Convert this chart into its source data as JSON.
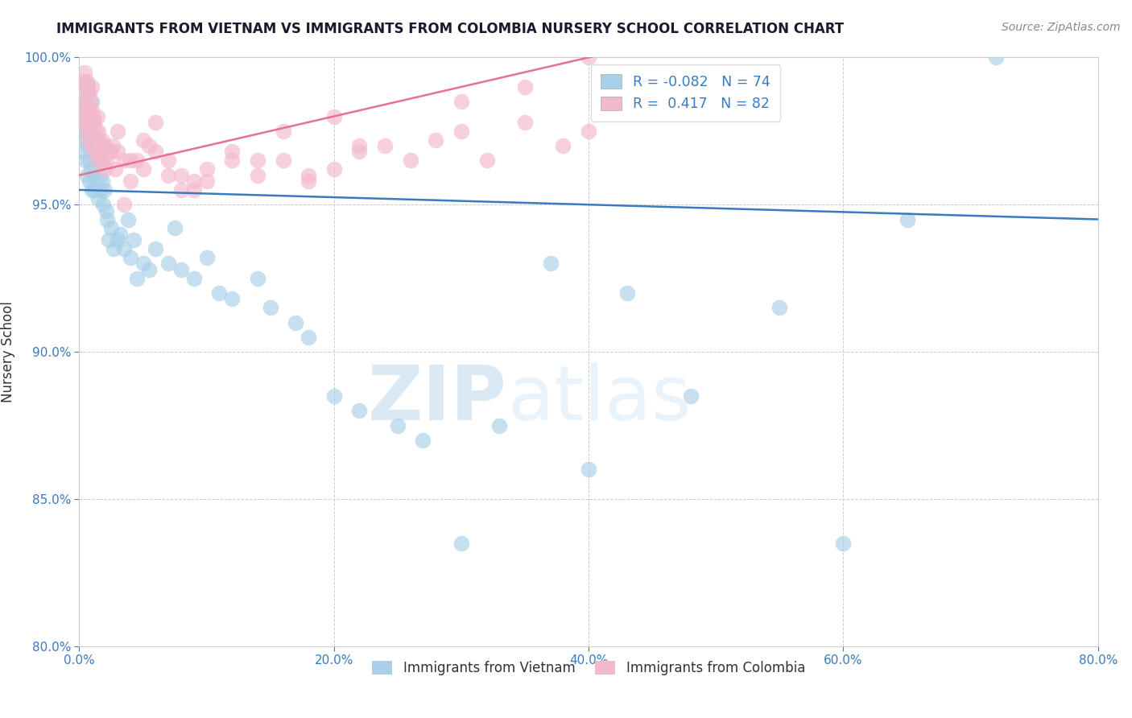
{
  "title": "IMMIGRANTS FROM VIETNAM VS IMMIGRANTS FROM COLOMBIA NURSERY SCHOOL CORRELATION CHART",
  "source": "Source: ZipAtlas.com",
  "ylabel": "Nursery School",
  "xlim": [
    0.0,
    80.0
  ],
  "ylim": [
    80.0,
    100.0
  ],
  "xticks": [
    0.0,
    20.0,
    40.0,
    60.0,
    80.0
  ],
  "yticks": [
    80.0,
    85.0,
    90.0,
    95.0,
    100.0
  ],
  "vietnam_R": -0.082,
  "vietnam_N": 74,
  "colombia_R": 0.417,
  "colombia_N": 82,
  "vietnam_color": "#a8d0e8",
  "colombia_color": "#f4b8cc",
  "vietnam_line_color": "#3a7bbf",
  "colombia_line_color": "#e87090",
  "watermark_zip": "ZIP",
  "watermark_atlas": "atlas",
  "legend_vietnam": "Immigrants from Vietnam",
  "legend_colombia": "Immigrants from Colombia",
  "vietnam_x": [
    0.2,
    0.3,
    0.3,
    0.4,
    0.4,
    0.5,
    0.5,
    0.5,
    0.6,
    0.6,
    0.6,
    0.7,
    0.7,
    0.8,
    0.8,
    0.8,
    0.9,
    0.9,
    1.0,
    1.0,
    1.0,
    1.1,
    1.1,
    1.2,
    1.2,
    1.3,
    1.4,
    1.5,
    1.5,
    1.6,
    1.7,
    1.8,
    1.9,
    2.0,
    2.1,
    2.2,
    2.3,
    2.5,
    2.7,
    3.0,
    3.2,
    3.5,
    3.8,
    4.0,
    4.3,
    4.5,
    5.0,
    5.5,
    6.0,
    7.0,
    7.5,
    8.0,
    9.0,
    10.0,
    11.0,
    12.0,
    14.0,
    15.0,
    17.0,
    18.0,
    20.0,
    22.0,
    25.0,
    27.0,
    30.0,
    33.0,
    37.0,
    40.0,
    43.0,
    48.0,
    55.0,
    60.0,
    65.0,
    72.0
  ],
  "vietnam_y": [
    97.5,
    98.2,
    96.8,
    99.0,
    97.2,
    98.5,
    97.8,
    96.5,
    99.1,
    97.5,
    96.0,
    98.8,
    97.0,
    98.0,
    96.5,
    95.8,
    97.5,
    96.2,
    98.5,
    97.2,
    95.5,
    97.8,
    96.0,
    97.2,
    95.5,
    96.8,
    97.0,
    96.5,
    95.2,
    96.0,
    95.5,
    95.8,
    95.0,
    95.5,
    94.8,
    94.5,
    93.8,
    94.2,
    93.5,
    93.8,
    94.0,
    93.5,
    94.5,
    93.2,
    93.8,
    92.5,
    93.0,
    92.8,
    93.5,
    93.0,
    94.2,
    92.8,
    92.5,
    93.2,
    92.0,
    91.8,
    92.5,
    91.5,
    91.0,
    90.5,
    88.5,
    88.0,
    87.5,
    87.0,
    83.5,
    87.5,
    93.0,
    86.0,
    92.0,
    88.5,
    91.5,
    83.5,
    94.5,
    100.0
  ],
  "colombia_x": [
    0.2,
    0.3,
    0.3,
    0.4,
    0.4,
    0.5,
    0.5,
    0.6,
    0.6,
    0.6,
    0.7,
    0.7,
    0.7,
    0.8,
    0.8,
    0.9,
    0.9,
    1.0,
    1.0,
    1.0,
    1.1,
    1.2,
    1.2,
    1.3,
    1.4,
    1.5,
    1.5,
    1.6,
    1.7,
    1.8,
    1.9,
    2.0,
    2.2,
    2.4,
    2.6,
    2.8,
    3.0,
    3.5,
    4.0,
    4.5,
    5.0,
    6.0,
    7.0,
    8.0,
    9.0,
    10.0,
    12.0,
    14.0,
    16.0,
    18.0,
    20.0,
    22.0,
    24.0,
    26.0,
    28.0,
    30.0,
    32.0,
    35.0,
    38.0,
    40.0,
    9.0,
    14.0,
    18.0,
    22.0,
    10.0,
    5.0,
    3.0,
    4.0,
    6.0,
    2.5,
    1.5,
    2.0,
    7.0,
    3.5,
    5.5,
    8.0,
    12.0,
    16.0,
    20.0,
    30.0,
    35.0,
    40.0
  ],
  "colombia_y": [
    98.5,
    99.2,
    97.8,
    99.5,
    98.2,
    99.0,
    98.0,
    99.2,
    98.5,
    97.5,
    99.0,
    98.2,
    97.2,
    98.8,
    97.8,
    98.5,
    97.5,
    99.0,
    98.2,
    97.0,
    98.0,
    97.8,
    96.8,
    97.5,
    98.0,
    97.2,
    96.5,
    97.0,
    96.8,
    97.2,
    96.5,
    97.0,
    96.5,
    96.8,
    97.0,
    96.2,
    96.8,
    96.5,
    95.8,
    96.5,
    96.2,
    96.8,
    96.5,
    96.0,
    95.8,
    96.2,
    96.5,
    96.0,
    96.5,
    95.8,
    96.2,
    96.8,
    97.0,
    96.5,
    97.2,
    97.5,
    96.5,
    97.8,
    97.0,
    97.5,
    95.5,
    96.5,
    96.0,
    97.0,
    95.8,
    97.2,
    97.5,
    96.5,
    97.8,
    96.8,
    97.5,
    96.2,
    96.0,
    95.0,
    97.0,
    95.5,
    96.8,
    97.5,
    98.0,
    98.5,
    99.0,
    100.0
  ]
}
